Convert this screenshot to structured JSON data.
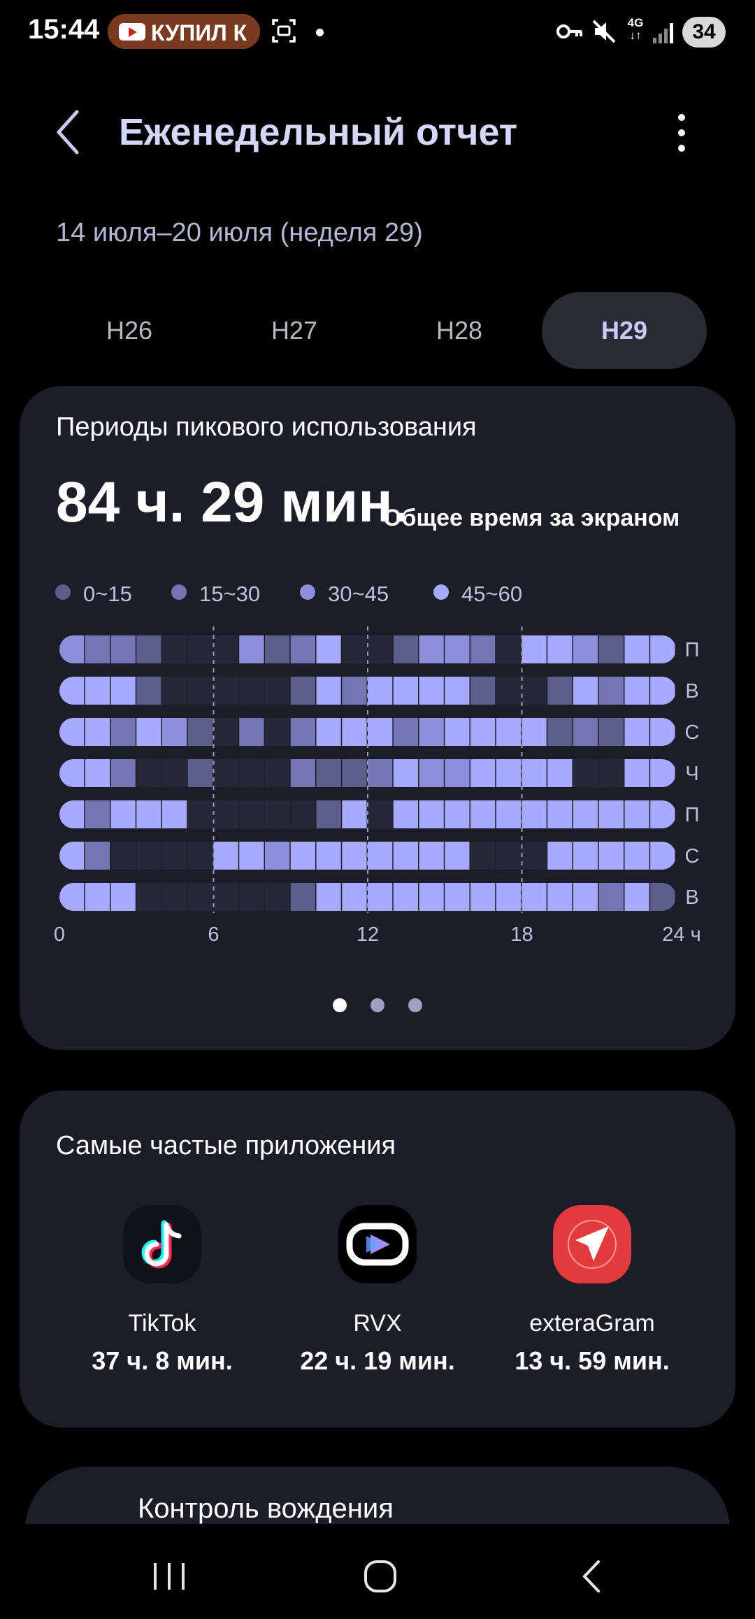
{
  "status_bar": {
    "time": "15:44",
    "notification_text": "КУПИЛ К",
    "network": "4G",
    "battery": "34",
    "icons": [
      "youtube-icon",
      "screenshot-icon",
      "dot-icon",
      "key-icon",
      "mute-icon",
      "signal-icon"
    ]
  },
  "header": {
    "title": "Еженедельный отчет",
    "date_range": "14 июля–20 июля (неделя 29)"
  },
  "tabs": [
    {
      "label": "Н26",
      "active": false
    },
    {
      "label": "Н27",
      "active": false
    },
    {
      "label": "Н28",
      "active": false
    },
    {
      "label": "Н29",
      "active": true
    }
  ],
  "peak_usage": {
    "title": "Периоды пикового использования",
    "total_time": "84 ч. 29 мин.",
    "total_label": "Общее время за экраном",
    "legend": [
      {
        "label": "0~15",
        "color": "#5c5e8c"
      },
      {
        "label": "15~30",
        "color": "#7476b4"
      },
      {
        "label": "30~45",
        "color": "#8d8fdc"
      },
      {
        "label": "45~60",
        "color": "#a8aaff"
      }
    ],
    "x_ticks": [
      "0",
      "6",
      "12",
      "18",
      "24 ч"
    ],
    "pager": {
      "count": 3,
      "active": 0
    }
  },
  "chart_data": {
    "type": "heatmap",
    "title": "Периоды пикового использования",
    "x_unit": "ч",
    "x_ticks": [
      0,
      6,
      12,
      18,
      24
    ],
    "rows": [
      "П",
      "В",
      "С",
      "Ч",
      "П",
      "С",
      "В"
    ],
    "hours": 24,
    "level_scale": [
      "none",
      "0~15",
      "15~30",
      "30~45",
      "45~60"
    ],
    "levels": [
      [
        3,
        2,
        2,
        1,
        0,
        0,
        0,
        3,
        1,
        2,
        4,
        0,
        0,
        1,
        3,
        3,
        2,
        0,
        4,
        4,
        3,
        1,
        4,
        4
      ],
      [
        4,
        4,
        4,
        1,
        0,
        0,
        0,
        0,
        0,
        1,
        4,
        2,
        4,
        4,
        4,
        4,
        1,
        0,
        0,
        1,
        4,
        2,
        4,
        4
      ],
      [
        4,
        4,
        2,
        4,
        3,
        1,
        0,
        2,
        0,
        2,
        4,
        4,
        4,
        2,
        3,
        4,
        4,
        4,
        4,
        1,
        2,
        1,
        4,
        4
      ],
      [
        4,
        4,
        2,
        0,
        0,
        1,
        0,
        0,
        0,
        2,
        1,
        1,
        2,
        4,
        3,
        3,
        4,
        4,
        4,
        4,
        0,
        0,
        4,
        4
      ],
      [
        4,
        2,
        4,
        4,
        4,
        0,
        0,
        0,
        0,
        0,
        1,
        4,
        0,
        4,
        4,
        4,
        4,
        4,
        4,
        4,
        4,
        4,
        4,
        4
      ],
      [
        4,
        2,
        0,
        0,
        0,
        0,
        4,
        4,
        3,
        4,
        4,
        4,
        4,
        4,
        4,
        4,
        0,
        0,
        0,
        4,
        4,
        4,
        4,
        4
      ],
      [
        4,
        4,
        4,
        0,
        0,
        0,
        0,
        0,
        0,
        1,
        4,
        4,
        4,
        4,
        4,
        4,
        4,
        4,
        4,
        4,
        4,
        2,
        4,
        1
      ]
    ]
  },
  "top_apps": {
    "title": "Самые частые приложения",
    "apps": [
      {
        "name": "TikTok",
        "time": "37 ч. 8 мин.",
        "icon": "tiktok-icon"
      },
      {
        "name": "RVX",
        "time": "22 ч. 19 мин.",
        "icon": "rvx-icon"
      },
      {
        "name": "exteraGram",
        "time": "13 ч. 59 мин.",
        "icon": "exteragram-icon"
      }
    ]
  },
  "driving": {
    "label": "Контроль вождения"
  },
  "nav": {
    "icons": [
      "recent-apps-icon",
      "home-icon",
      "back-nav-icon"
    ]
  }
}
